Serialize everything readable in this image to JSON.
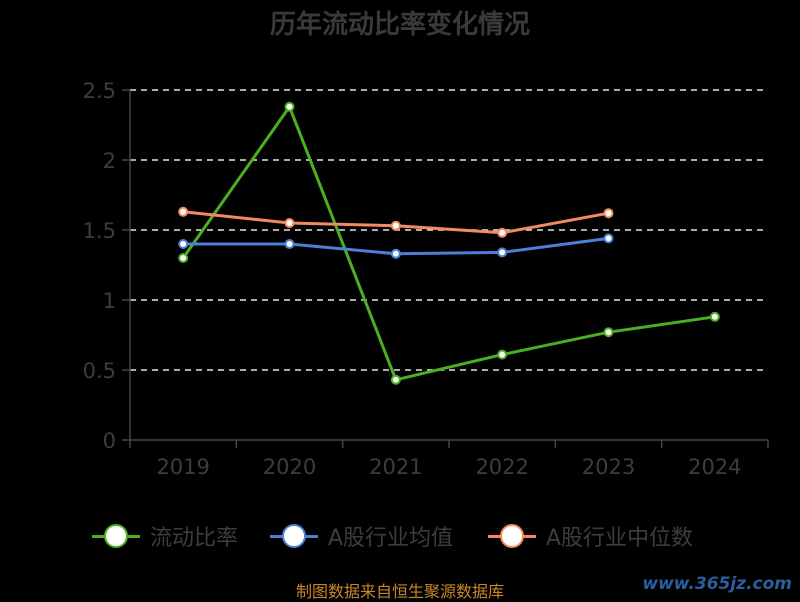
{
  "title": "历年流动比率变化情况",
  "source": "制图数据来自恒生聚源数据库",
  "watermark": "www.365jz.com",
  "chart_data": {
    "type": "line",
    "title": "历年流动比率变化情况",
    "xlabel": "",
    "ylabel": "",
    "categories": [
      "2019",
      "2020",
      "2021",
      "2022",
      "2023",
      "2024"
    ],
    "ylim": [
      0,
      2.5
    ],
    "yticks": [
      0,
      0.5,
      1,
      1.5,
      2,
      2.5
    ],
    "ytick_labels": [
      "0",
      "0.5",
      "1",
      "1.5",
      "2",
      "2.5"
    ],
    "grid": true,
    "legend_position": "bottom",
    "series": [
      {
        "name": "流动比率",
        "color": "#4caf22",
        "values": [
          1.3,
          2.38,
          0.43,
          0.61,
          0.77,
          0.88
        ]
      },
      {
        "name": "A股行业均值",
        "color": "#4a80d8",
        "values": [
          1.4,
          1.4,
          1.33,
          1.34,
          1.44,
          null
        ]
      },
      {
        "name": "A股行业中位数",
        "color": "#f28a62",
        "values": [
          1.63,
          1.55,
          1.53,
          1.48,
          1.62,
          null
        ]
      }
    ]
  }
}
